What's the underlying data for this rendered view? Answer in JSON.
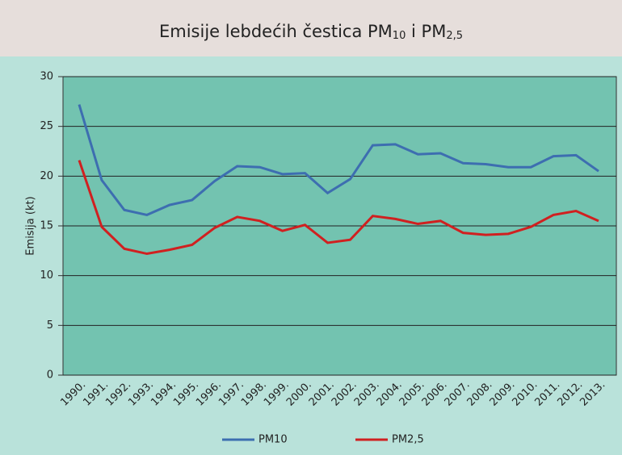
{
  "chart_data": {
    "type": "line",
    "title_parts": [
      "Emisije lebdećih čestica PM",
      "10",
      " i PM",
      "2,5"
    ],
    "y_label": "Emisija (kt)",
    "categories": [
      "1990.",
      "1991.",
      "1992.",
      "1993.",
      "1994.",
      "1995.",
      "1996.",
      "1997.",
      "1998.",
      "1999.",
      "2000.",
      "2001.",
      "2002.",
      "2003.",
      "2004.",
      "2005.",
      "2006.",
      "2007.",
      "2008.",
      "2009.",
      "2010.",
      "2011.",
      "2012.",
      "2013."
    ],
    "series": [
      {
        "name": "PM10",
        "color": "#3d6eb0",
        "values": [
          27.2,
          19.6,
          16.6,
          16.1,
          17.1,
          17.6,
          19.5,
          21.0,
          20.9,
          20.2,
          20.3,
          18.3,
          19.7,
          23.1,
          23.2,
          22.2,
          22.3,
          21.3,
          21.2,
          20.9,
          20.9,
          22.0,
          22.1,
          20.5
        ]
      },
      {
        "name": "PM2,5",
        "color": "#d02020",
        "values": [
          21.6,
          14.9,
          12.7,
          12.2,
          12.6,
          13.1,
          14.8,
          15.9,
          15.5,
          14.5,
          15.1,
          13.3,
          13.6,
          16.0,
          15.7,
          15.2,
          15.5,
          14.3,
          14.1,
          14.2,
          14.9,
          16.1,
          16.5,
          15.5
        ]
      }
    ],
    "ylim": [
      0,
      30
    ],
    "yticks": [
      0,
      5,
      10,
      15,
      20,
      25,
      30
    ],
    "grid": true,
    "legend": "bottom"
  }
}
